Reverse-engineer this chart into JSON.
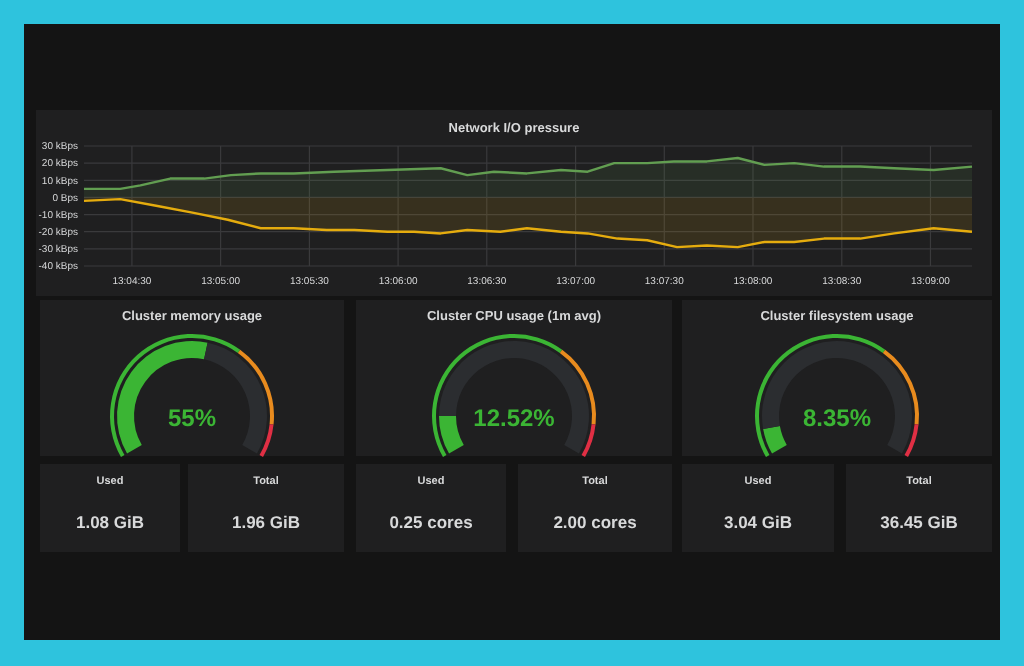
{
  "chart_data": [
    {
      "type": "area",
      "title": "Network I/O pressure",
      "grid": true,
      "xlim": [
        13.0705,
        13.1539
      ],
      "ylim": [
        -40,
        30
      ],
      "xticks": [
        {
          "value": 13.075,
          "label": "13:04:30"
        },
        {
          "value": 13.08333,
          "label": "13:05:00"
        },
        {
          "value": 13.09167,
          "label": "13:05:30"
        },
        {
          "value": 13.1,
          "label": "13:06:00"
        },
        {
          "value": 13.10833,
          "label": "13:06:30"
        },
        {
          "value": 13.11667,
          "label": "13:07:00"
        },
        {
          "value": 13.125,
          "label": "13:07:30"
        },
        {
          "value": 13.13333,
          "label": "13:08:00"
        },
        {
          "value": 13.14167,
          "label": "13:08:30"
        },
        {
          "value": 13.15,
          "label": "13:09:00"
        }
      ],
      "yticks": [
        {
          "value": -40,
          "label": "-40 kBps"
        },
        {
          "value": -30,
          "label": "-30 kBps"
        },
        {
          "value": -20,
          "label": "-20 kBps"
        },
        {
          "value": -10,
          "label": "-10 kBps"
        },
        {
          "value": 0,
          "label": "0 Bps"
        },
        {
          "value": 10,
          "label": "10 kBps"
        },
        {
          "value": 20,
          "label": "20 kBps"
        },
        {
          "value": 30,
          "label": "30 kBps"
        }
      ],
      "series": [
        {
          "color": "#629e51",
          "x": [
            13.0705,
            13.0739,
            13.0758,
            13.0786,
            13.0818,
            13.0843,
            13.0871,
            13.0902,
            13.094,
            13.099,
            13.104,
            13.1065,
            13.109,
            13.1121,
            13.1153,
            13.1178,
            13.1203,
            13.1234,
            13.1259,
            13.129,
            13.1319,
            13.1344,
            13.1372,
            13.14,
            13.1434,
            13.1466,
            13.1503,
            13.1539
          ],
          "values": [
            5,
            5,
            7,
            11,
            11,
            13,
            14,
            14,
            15,
            16,
            17,
            13,
            15,
            14,
            16,
            15,
            20,
            20,
            21,
            21,
            23,
            19,
            20,
            18,
            18,
            17,
            16,
            18
          ]
        },
        {
          "color": "#e5ac0e",
          "x": [
            13.0705,
            13.0739,
            13.0774,
            13.0808,
            13.084,
            13.0871,
            13.0902,
            13.0933,
            13.0959,
            13.099,
            13.1015,
            13.104,
            13.1065,
            13.1096,
            13.1121,
            13.1153,
            13.1178,
            13.1206,
            13.1234,
            13.1262,
            13.129,
            13.1319,
            13.1344,
            13.1372,
            13.14,
            13.1434,
            13.1466,
            13.1503,
            13.1539
          ],
          "values": [
            -2,
            -1,
            -5,
            -9,
            -13,
            -18,
            -18,
            -19,
            -19,
            -20,
            -20,
            -21,
            -19,
            -20,
            -18,
            -20,
            -21,
            -24,
            -25,
            -29,
            -28,
            -29,
            -26,
            -26,
            -24,
            -24,
            -21,
            -18,
            -20
          ]
        }
      ]
    },
    {
      "type": "donut",
      "title": "Cluster memory usage",
      "annotations": [
        "55%"
      ],
      "series": [
        {
          "values": [
            55,
            45
          ],
          "colors": [
            "#3bb534",
            "#2b2d30"
          ]
        },
        {
          "values": [
            65,
            25,
            10
          ],
          "colors": [
            "#3bb534",
            "#e88b1e",
            "#e02f44"
          ]
        }
      ]
    },
    {
      "type": "donut",
      "title": "Cluster CPU usage (1m avg)",
      "annotations": [
        "12.52%"
      ],
      "series": [
        {
          "values": [
            12.52,
            87.48
          ],
          "colors": [
            "#3bb534",
            "#2b2d30"
          ]
        },
        {
          "values": [
            65,
            25,
            10
          ],
          "colors": [
            "#3bb534",
            "#e88b1e",
            "#e02f44"
          ]
        }
      ]
    },
    {
      "type": "donut",
      "title": "Cluster filesystem usage",
      "annotations": [
        "8.35%"
      ],
      "series": [
        {
          "values": [
            8.35,
            91.65
          ],
          "colors": [
            "#3bb534",
            "#2b2d30"
          ]
        },
        {
          "values": [
            65,
            25,
            10
          ],
          "colors": [
            "#3bb534",
            "#e88b1e",
            "#e02f44"
          ]
        }
      ]
    },
    {
      "type": "other",
      "categories": [
        "Used",
        "Total",
        "Used",
        "Total",
        "Used",
        "Total"
      ],
      "value_labels": [
        "1.08 GiB",
        "1.96 GiB",
        "0.25 cores",
        "2.00 cores",
        "3.04 GiB",
        "36.45 GiB"
      ]
    }
  ]
}
